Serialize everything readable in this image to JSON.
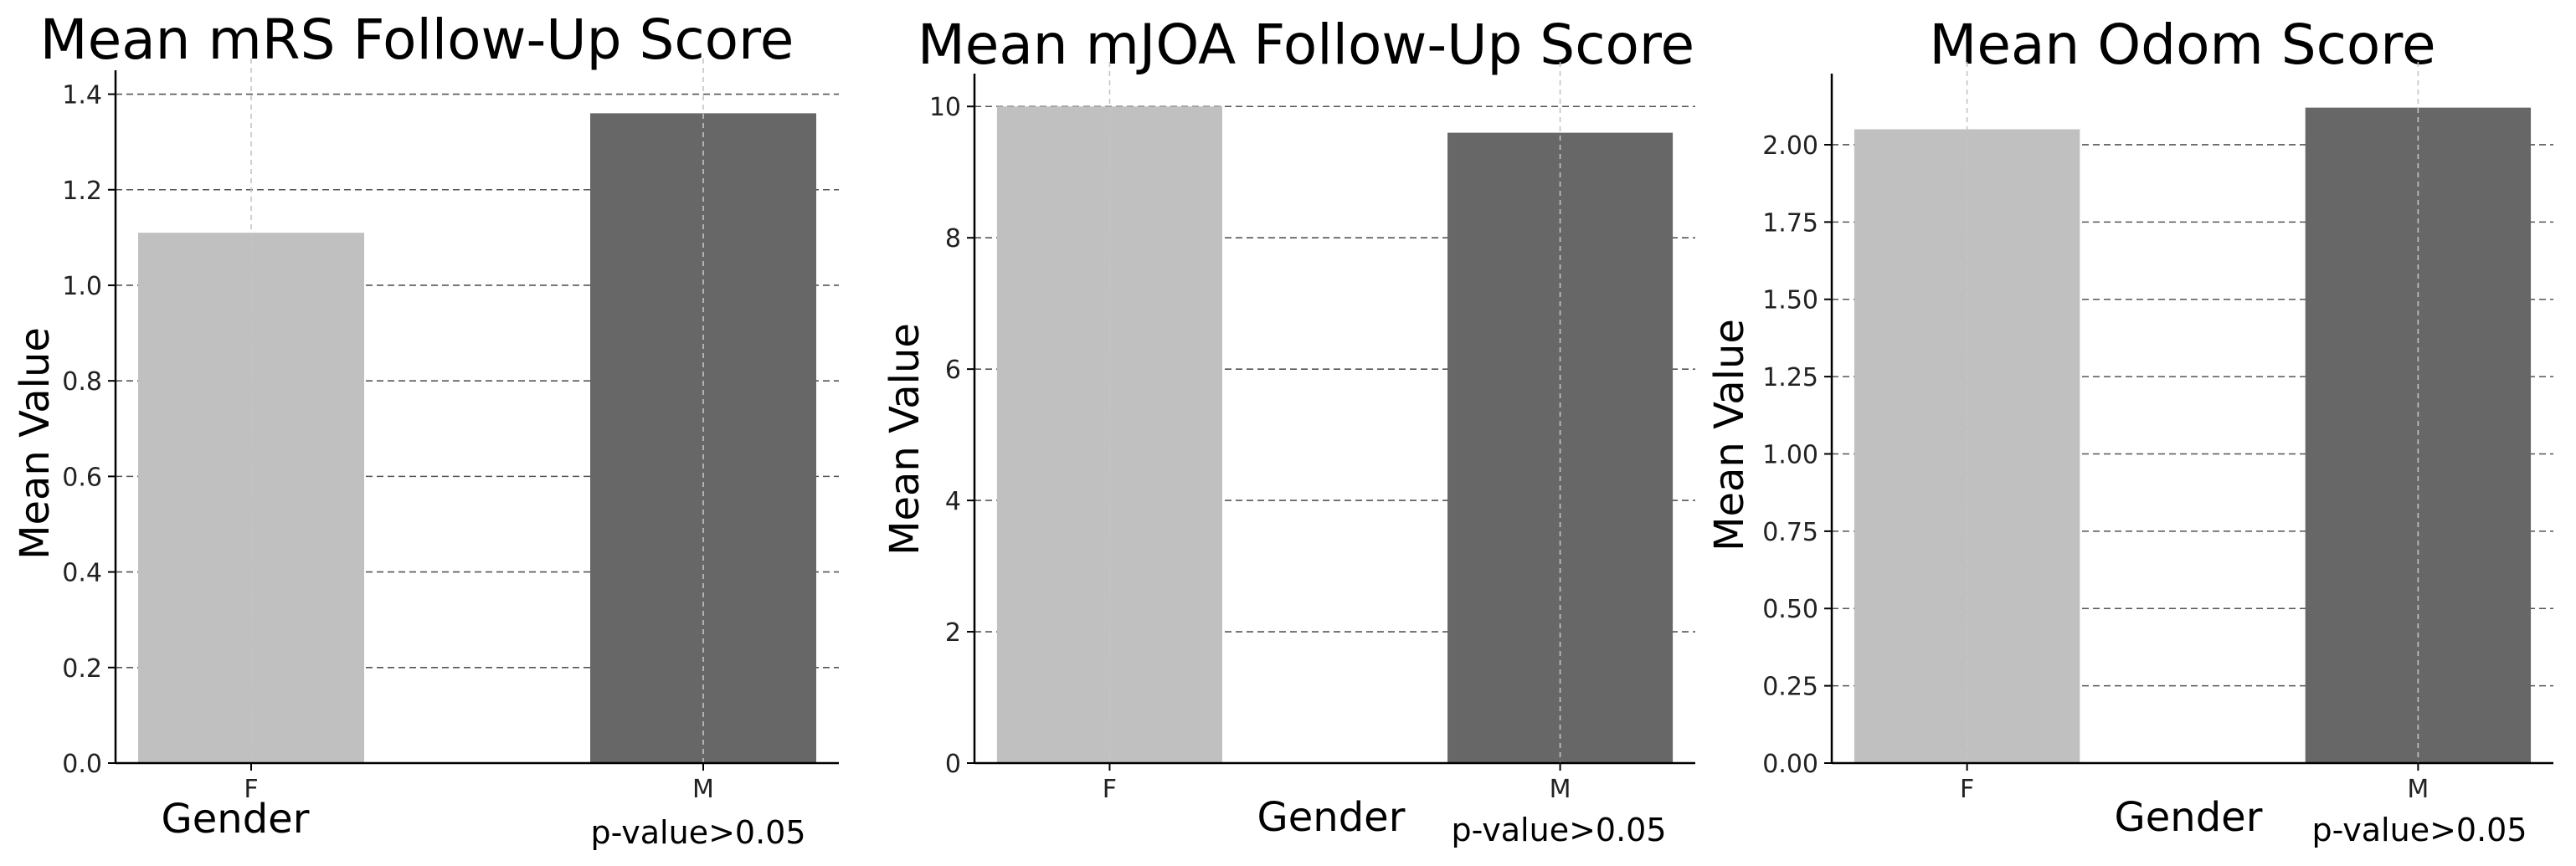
{
  "chart_data": [
    {
      "type": "bar",
      "title": "Mean mRS Follow-Up Score",
      "xlabel": "Gender",
      "ylabel": "Mean Value",
      "categories": [
        "F",
        "M"
      ],
      "values": [
        1.11,
        1.36
      ],
      "ylim": [
        0,
        1.45
      ],
      "yticks": [
        0.0,
        0.2,
        0.4,
        0.6,
        0.8,
        1.0,
        1.2,
        1.4
      ],
      "ytick_labels": [
        "0.0",
        "0.2",
        "0.4",
        "0.6",
        "0.8",
        "1.0",
        "1.2",
        "1.4"
      ],
      "bar_colors": [
        "#c0c0c0",
        "#676767"
      ],
      "grid": true,
      "annotation": "p-value>0.05"
    },
    {
      "type": "bar",
      "title": "Mean mJOA Follow-Up Score",
      "xlabel": "Gender",
      "ylabel": "Mean Value",
      "categories": [
        "F",
        "M"
      ],
      "values": [
        10.0,
        9.6
      ],
      "ylim": [
        0,
        10.5
      ],
      "yticks": [
        0,
        2,
        4,
        6,
        8,
        10
      ],
      "ytick_labels": [
        "0",
        "2",
        "4",
        "6",
        "8",
        "10"
      ],
      "bar_colors": [
        "#c0c0c0",
        "#676767"
      ],
      "grid": true,
      "annotation": "p-value>0.05"
    },
    {
      "type": "bar",
      "title": "Mean Odom Score",
      "xlabel": "Gender",
      "ylabel": "Mean Value",
      "categories": [
        "F",
        "M"
      ],
      "values": [
        2.05,
        2.12
      ],
      "ylim": [
        0,
        2.23
      ],
      "yticks": [
        0.0,
        0.25,
        0.5,
        0.75,
        1.0,
        1.25,
        1.5,
        1.75,
        2.0
      ],
      "ytick_labels": [
        "0.00",
        "0.25",
        "0.50",
        "0.75",
        "1.00",
        "1.25",
        "1.50",
        "1.75",
        "2.00"
      ],
      "bar_colors": [
        "#c0c0c0",
        "#676767"
      ],
      "grid": true,
      "annotation": "p-value>0.05"
    }
  ]
}
